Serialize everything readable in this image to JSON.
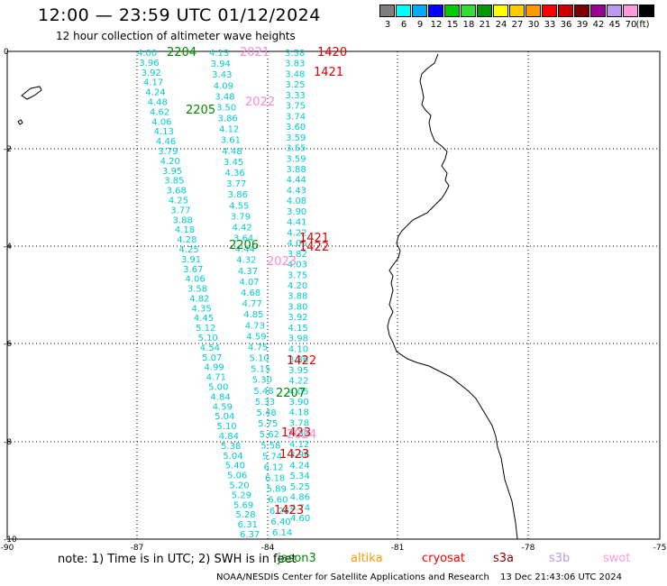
{
  "header": {
    "title": "12:00 — 23:59 UTC 01/12/2024",
    "subtitle": "12 hour collection of altimeter wave heights"
  },
  "legend": {
    "unit": "(ft)",
    "colors": [
      {
        "color": "#7f7f7f",
        "label": "3"
      },
      {
        "color": "#00ffff",
        "label": "6"
      },
      {
        "color": "#00aaff",
        "label": "9"
      },
      {
        "color": "#0000ff",
        "label": "12"
      },
      {
        "color": "#00cc00",
        "label": "15"
      },
      {
        "color": "#33dd33",
        "label": "18"
      },
      {
        "color": "#009900",
        "label": "21"
      },
      {
        "color": "#ffff00",
        "label": "24"
      },
      {
        "color": "#ffcc00",
        "label": "27"
      },
      {
        "color": "#ff9900",
        "label": "30"
      },
      {
        "color": "#ff0000",
        "label": "33"
      },
      {
        "color": "#cc0000",
        "label": "36"
      },
      {
        "color": "#800000",
        "label": "39"
      },
      {
        "color": "#990099",
        "label": "42"
      },
      {
        "color": "#bb99ee",
        "label": "45"
      },
      {
        "color": "#ff99dd",
        "label": "70"
      },
      {
        "color": "#000000",
        "label": ""
      }
    ]
  },
  "axes": {
    "lon_labels": [
      "-90",
      "-87",
      "-84",
      "-81",
      "-78",
      "-75"
    ],
    "lat_labels": [
      "0",
      "-2",
      "-4",
      "-6",
      "-8",
      "-10"
    ]
  },
  "tracks": {
    "track1": [
      "4.00",
      "3.96",
      "3.92",
      "4.17",
      "4.24",
      "4.48",
      "4.62",
      "4.06",
      "4.13",
      "4.46",
      "3.79",
      "4.20",
      "3.95",
      "3.85",
      "3.68",
      "4.25",
      "3.77",
      "3.88",
      "4.18",
      "4.28",
      "4.25",
      "3.91",
      "3.67",
      "4.06",
      "3.58",
      "4.82",
      "4.35",
      "4.45",
      "5.12",
      "5.10",
      "4.54",
      "5.07",
      "4.99",
      "4.71",
      "5.00",
      "4.84",
      "4.59",
      "5.04",
      "5.10",
      "4.84",
      "5.38",
      "5.04",
      "5.40",
      "5.06",
      "5.20",
      "5.29",
      "5.69",
      "5.28",
      "6.31",
      "6.37"
    ],
    "track2": [
      "4.13",
      "3.94",
      "3.43",
      "4.09",
      "3.48",
      "3.50",
      "3.86",
      "4.12",
      "3.61",
      "4.48",
      "3.45",
      "4.36",
      "3.77",
      "3.86",
      "4.55",
      "3.79",
      "4.42",
      "3.64",
      "4.44",
      "4.32",
      "4.37",
      "4.07",
      "4.68",
      "4.77",
      "4.85",
      "4.73",
      "4.59",
      "4.75",
      "5.10",
      "5.15",
      "5.30",
      "5.48",
      "5.33",
      "5.48",
      "5.75",
      "5.62",
      "5.58",
      "5.74",
      "6.12",
      "6.18",
      "5.89",
      "6.60",
      "6.26",
      "6.40",
      "6.14"
    ],
    "track3": [
      "3.58",
      "3.83",
      "3.48",
      "3.25",
      "3.33",
      "3.75",
      "3.74",
      "3.60",
      "3.59",
      "3.55",
      "3.59",
      "3.88",
      "4.44",
      "4.43",
      "4.08",
      "3.90",
      "4.41",
      "4.22",
      "4.05",
      "3.82",
      "4.03",
      "3.75",
      "4.20",
      "3.88",
      "3.80",
      "3.92",
      "4.15",
      "3.98",
      "4.10",
      "3.86",
      "3.95",
      "4.22",
      "4.05",
      "3.90",
      "4.18",
      "3.78",
      "4.30",
      "4.12",
      "3.96",
      "4.24",
      "5.34",
      "5.25",
      "4.86",
      "4.74",
      "4.60"
    ],
    "pass_labels": [
      {
        "text": "2204",
        "color": "#008800"
      },
      {
        "text": "2021",
        "color": "#ff88cc"
      },
      {
        "text": "1420",
        "color": "#dd0000"
      },
      {
        "text": "1421",
        "color": "#dd0000"
      },
      {
        "text": "2022",
        "color": "#ff88cc"
      },
      {
        "text": "2205",
        "color": "#008800"
      },
      {
        "text": "2206",
        "color": "#008800"
      },
      {
        "text": "1421",
        "color": "#dd0000"
      },
      {
        "text": "1422",
        "color": "#dd0000"
      },
      {
        "text": "2023",
        "color": "#ff88cc"
      },
      {
        "text": "1422",
        "color": "#dd0000"
      },
      {
        "text": "2207",
        "color": "#008800"
      },
      {
        "text": "1423",
        "color": "#dd0000"
      },
      {
        "text": "2024",
        "color": "#ff88cc"
      },
      {
        "text": "1423",
        "color": "#dd0000"
      },
      {
        "text": "1423",
        "color": "#dd0000"
      }
    ]
  },
  "footer": {
    "note": "note: 1) Time is in UTC; 2) SWH is in feet",
    "missions": [
      {
        "name": "jason3",
        "color": "#008800"
      },
      {
        "name": "altika",
        "color": "#ff9900"
      },
      {
        "name": "cryosat",
        "color": "#ff0000"
      },
      {
        "name": "s3a",
        "color": "#880000"
      },
      {
        "name": "s3b",
        "color": "#bb99ee"
      },
      {
        "name": "swot",
        "color": "#ff99dd"
      }
    ],
    "credit": "NOAA/NESDIS Center for Satellite Applications and Research",
    "timestamp": "13 Dec 21:43:06 UTC 2024"
  }
}
